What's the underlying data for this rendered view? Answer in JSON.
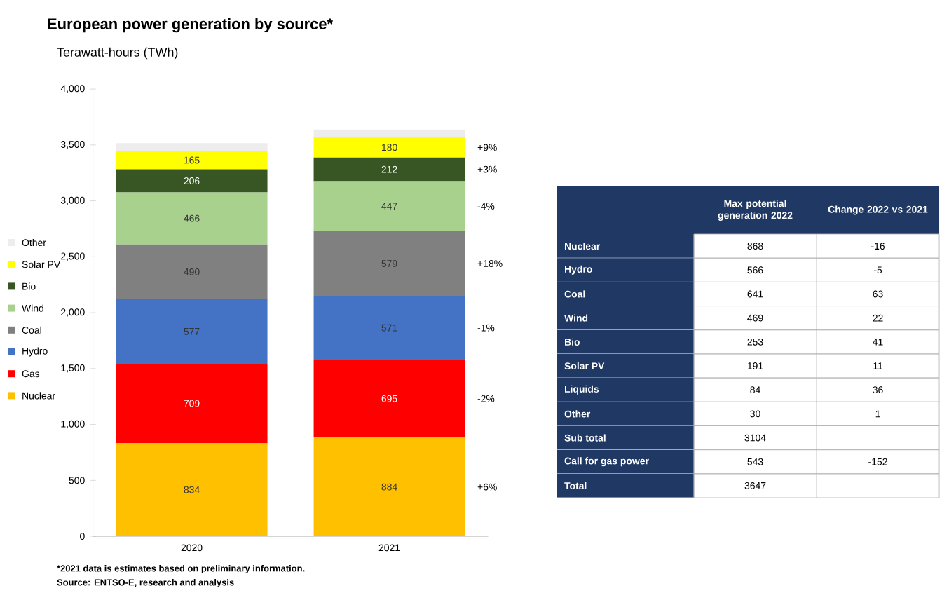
{
  "chart_data": [
    {
      "type": "bar",
      "stacked": true,
      "title": "European power generation by source*",
      "subtitle": "Terawatt-hours (TWh)",
      "categories": [
        "2020",
        "2021"
      ],
      "series": [
        {
          "name": "Nuclear",
          "color": "#ffc000",
          "values": [
            834,
            884
          ],
          "value_labels": [
            "834",
            "884"
          ]
        },
        {
          "name": "Gas",
          "color": "#ff0000",
          "values": [
            709,
            695
          ],
          "value_labels": [
            "709",
            "695"
          ]
        },
        {
          "name": "Hydro",
          "color": "#4472c4",
          "values": [
            577,
            571
          ],
          "value_labels": [
            "577",
            "571"
          ]
        },
        {
          "name": "Coal",
          "color": "#808080",
          "values": [
            490,
            579
          ],
          "value_labels": [
            "490",
            "579"
          ]
        },
        {
          "name": "Wind",
          "color": "#a9d18e",
          "values": [
            466,
            447
          ],
          "value_labels": [
            "466",
            "447"
          ]
        },
        {
          "name": "Bio",
          "color": "#375623",
          "values": [
            206,
            212
          ],
          "value_labels": [
            "206",
            "212"
          ]
        },
        {
          "name": "Solar PV",
          "color": "#ffff00",
          "values": [
            165,
            180
          ],
          "value_labels": [
            "165",
            "180"
          ]
        },
        {
          "name": "Other",
          "color": "#ededed",
          "values": [
            70,
            70
          ]
        }
      ],
      "ylim": [
        0,
        4000
      ],
      "yticks": [
        0,
        {
          "value": 500,
          "label": "500"
        },
        {
          "value": 1000,
          "label": "1,000"
        },
        {
          "value": 1500,
          "label": "1,500"
        },
        {
          "value": 2000,
          "label": "2,000"
        },
        {
          "value": 2500,
          "label": "2,500"
        },
        {
          "value": 3000,
          "label": "3,000"
        },
        {
          "value": 3500,
          "label": "3,500"
        },
        {
          "value": 4000,
          "label": "4,000"
        }
      ],
      "legend": "left",
      "annotations": [
        "+9%",
        "+3%",
        "-4%",
        "+18%",
        "-1%",
        "-2%",
        "+6%",
        "*2021 data is estimates based on preliminary information.",
        "Source: ENTSO-E, research and analysis"
      ]
    },
    {
      "type": "other",
      "data_labels": true,
      "categories": [
        "Nuclear",
        "Hydro",
        "Coal",
        "Wind",
        "Bio",
        "Solar PV",
        "Liquids",
        "Other",
        "Sub total",
        "Call for gas power",
        "Total"
      ],
      "series": [
        {
          "name": "Max potential generation 2022",
          "values": [
            868,
            566,
            641,
            469,
            253,
            191,
            84,
            30,
            3104,
            543,
            3647
          ]
        },
        {
          "name": "Change 2022 vs 2021",
          "values": [
            -16,
            -5,
            63,
            22,
            41,
            11,
            36,
            1,
            null,
            -152,
            null
          ]
        }
      ]
    }
  ]
}
